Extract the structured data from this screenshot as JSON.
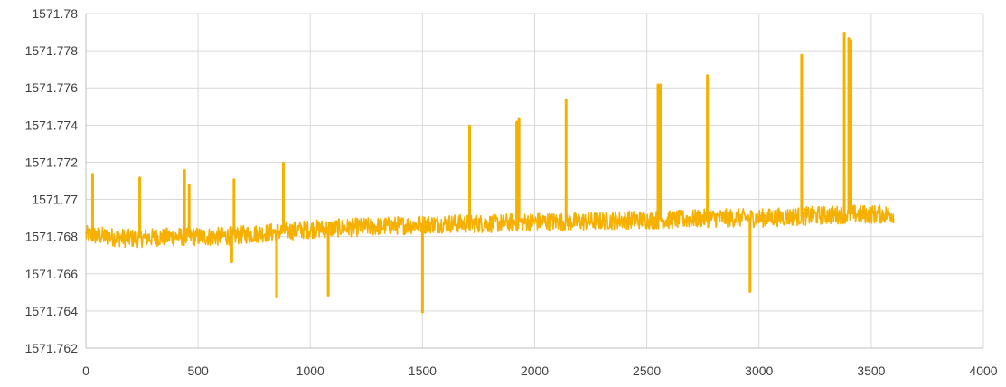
{
  "chart_data": {
    "type": "line",
    "title": "",
    "xlabel": "",
    "ylabel": "",
    "xlim": [
      0,
      4000
    ],
    "ylim": [
      1571.762,
      1571.78
    ],
    "x_ticks": [
      0,
      500,
      1000,
      1500,
      2000,
      2500,
      3000,
      3500,
      4000
    ],
    "x_tick_labels": [
      "0",
      "500",
      "1000",
      "1500",
      "2000",
      "2500",
      "3000",
      "3500",
      "4000"
    ],
    "y_ticks": [
      1571.762,
      1571.764,
      1571.766,
      1571.768,
      1571.77,
      1571.772,
      1571.774,
      1571.776,
      1571.778,
      1571.78
    ],
    "y_tick_labels": [
      "1571.762",
      "1571.764",
      "1571.766",
      "1571.768",
      "1571.77",
      "1571.772",
      "1571.774",
      "1571.776",
      "1571.778",
      "1571.78"
    ],
    "grid": true,
    "legend": "none",
    "colors": {
      "line": "#F5B000",
      "grid": "#D9D9D9",
      "axis": "#BFBFBF",
      "tick_text": "#404040"
    },
    "series": [
      {
        "values_summary": "noisy baseline around 1571.768 rising to ~1571.7692 over x=0..3600",
        "points": [
          [
            0,
            1571.7681
          ],
          [
            200,
            1571.7679
          ],
          [
            400,
            1571.768
          ],
          [
            600,
            1571.768
          ],
          [
            800,
            1571.7682
          ],
          [
            1000,
            1571.7684
          ],
          [
            1200,
            1571.7685
          ],
          [
            1400,
            1571.7686
          ],
          [
            1600,
            1571.7687
          ],
          [
            1800,
            1571.7687
          ],
          [
            2000,
            1571.7688
          ],
          [
            2200,
            1571.7688
          ],
          [
            2400,
            1571.7689
          ],
          [
            2600,
            1571.7689
          ],
          [
            2800,
            1571.769
          ],
          [
            3000,
            1571.769
          ],
          [
            3200,
            1571.7691
          ],
          [
            3400,
            1571.7692
          ],
          [
            3600,
            1571.7692
          ]
        ],
        "spikes": [
          [
            30,
            1571.7714
          ],
          [
            240,
            1571.7712
          ],
          [
            440,
            1571.7716
          ],
          [
            460,
            1571.7708
          ],
          [
            660,
            1571.7711
          ],
          [
            880,
            1571.772
          ],
          [
            1710,
            1571.774
          ],
          [
            1920,
            1571.7742
          ],
          [
            1930,
            1571.7744
          ],
          [
            2140,
            1571.7754
          ],
          [
            2550,
            1571.7762
          ],
          [
            2560,
            1571.7762
          ],
          [
            2770,
            1571.7767
          ],
          [
            3190,
            1571.7778
          ],
          [
            3380,
            1571.779
          ],
          [
            3400,
            1571.7787
          ],
          [
            3410,
            1571.7786
          ]
        ],
        "dips": [
          [
            650,
            1571.7666
          ],
          [
            850,
            1571.7647
          ],
          [
            1080,
            1571.7648
          ],
          [
            1500,
            1571.7639
          ],
          [
            2960,
            1571.765
          ]
        ]
      }
    ]
  }
}
